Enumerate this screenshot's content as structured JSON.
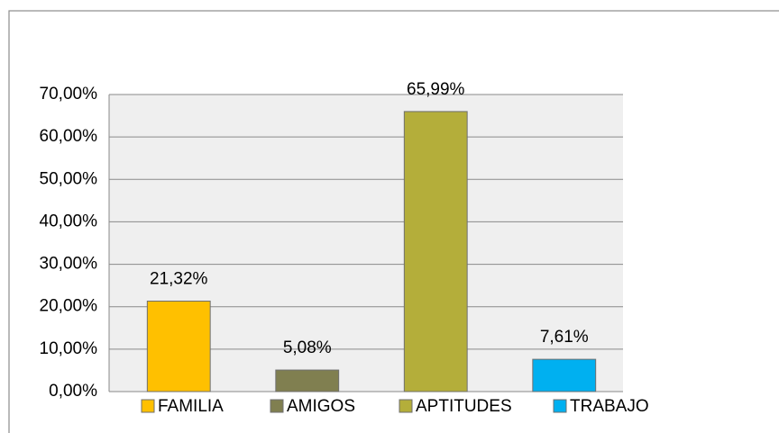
{
  "chart_data": {
    "type": "bar",
    "series": [
      {
        "name": "FAMILIA",
        "color": "#ffc000",
        "values": [
          21.32
        ],
        "value_labels": [
          "21,32%"
        ]
      },
      {
        "name": "AMIGOS",
        "color": "#807f50",
        "values": [
          5.08
        ],
        "value_labels": [
          "5,08%"
        ]
      },
      {
        "name": "APTITUDES",
        "color": "#b4ae3a",
        "values": [
          65.99
        ],
        "value_labels": [
          "65,99%"
        ]
      },
      {
        "name": "TRABAJO",
        "color": "#00b0f0",
        "values": [
          7.61
        ],
        "value_labels": [
          "7,61%"
        ]
      }
    ],
    "ylim": [
      0,
      70
    ],
    "yticks": [
      {
        "value": 0,
        "label": "0,00%"
      },
      {
        "value": 10,
        "label": "10,00%"
      },
      {
        "value": 20,
        "label": "20,00%"
      },
      {
        "value": 30,
        "label": "30,00%"
      },
      {
        "value": 40,
        "label": "40,00%"
      },
      {
        "value": 50,
        "label": "50,00%"
      },
      {
        "value": 60,
        "label": "60,00%"
      },
      {
        "value": 70,
        "label": "70,00%"
      }
    ],
    "grid": true,
    "legend": "bottom"
  }
}
